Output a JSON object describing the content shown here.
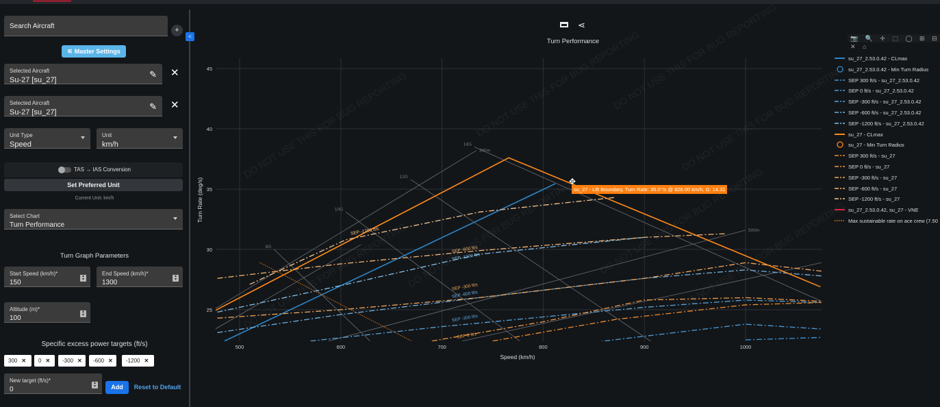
{
  "sidebar": {
    "search_placeholder": "Search Aircraft",
    "master_settings": "Master Settings",
    "selected_aircraft": [
      {
        "label": "Selected Aircraft",
        "value": "Su-27 [su_27]"
      },
      {
        "label": "Selected Aircraft",
        "value": "Su-27 [su_27]"
      }
    ],
    "unit_type": {
      "label": "Unit Type",
      "value": "Speed"
    },
    "unit": {
      "label": "Unit",
      "value": "km/h"
    },
    "tas_toggle": "TAS → IAS Conversion",
    "set_preferred": "Set Preferred Unit",
    "current_unit": "Current Unit: km/h",
    "select_chart": {
      "label": "Select Chart",
      "value": "Turn Performance"
    },
    "turn_params_title": "Turn Graph Parameters",
    "start_speed": {
      "label": "Start Speed (km/h)*",
      "value": "150"
    },
    "end_speed": {
      "label": "End Speed (km/h)*",
      "value": "1300"
    },
    "altitude": {
      "label": "Altitude (m)*",
      "value": "100"
    },
    "sep_title": "Specific excess power targets (ft/s)",
    "sep_chips": [
      "300",
      "0",
      "-300",
      "-600",
      "-1200"
    ],
    "chip_remove": "✕",
    "new_target": {
      "label": "New target (ft/s)*",
      "value": "0"
    },
    "add": "Add",
    "reset": "Reset to Default"
  },
  "chart_toolbar": {
    "icons": [
      "fullscreen-icon",
      "share-icon"
    ]
  },
  "modebar_icons": "📷 🔍 ✛ ⬚ ◯ ⊞ ⊟ ✕ ⌂",
  "watermark": "DO NOT USE THIS FOR BUG REPORTING",
  "tooltip": "su_27 - Lift Boundary, Turn Rate: 35.0°/s @ 826.00 km/h, G: 14.31",
  "colors": {
    "blue": "#2e86c8",
    "orange": "#ff8a1a",
    "vne": "#d62745",
    "accent": "#1a73e8"
  },
  "chart_data": {
    "type": "line",
    "title": "Turn Performance",
    "xlabel": "Speed (km/h)",
    "ylabel": "Turn Rate (deg/s)",
    "xlim": [
      476,
      1075
    ],
    "ylim": [
      22.4,
      45.8
    ],
    "xticks": [
      500,
      600,
      700,
      800,
      900,
      1000
    ],
    "yticks": [
      25,
      30,
      35,
      40,
      45
    ],
    "grid": true,
    "legend_position": "right",
    "series": [
      {
        "name": "su_27_2.53.0.42 - CLmax",
        "style": "solid",
        "color": "#2e86c8",
        "points": [
          [
            485,
            22.4
          ],
          [
            812,
            35.45
          ]
        ]
      },
      {
        "name": "su_27_2.53.0.42 - Min Turn Radius",
        "style": "circle",
        "color": "#2e86c8",
        "points": []
      },
      {
        "name": "SEP 300 ft/s - su_27_2.53.0.42",
        "style": "dashdot",
        "color": "#3f95d6",
        "points": [
          [
            1000,
            22.5
          ],
          [
            1075,
            22.7
          ]
        ]
      },
      {
        "name": "SEP 0 ft/s - su_27_2.53.0.42",
        "style": "dashdot",
        "color": "#4a9bd8",
        "points": [
          [
            850,
            22.3
          ],
          [
            1000,
            23.8
          ],
          [
            1075,
            23.4
          ]
        ]
      },
      {
        "name": "SEP -300 ft/s - su_27_2.53.0.42",
        "style": "dashdot",
        "color": "#5aa5dc",
        "points": [
          [
            570,
            22.4
          ],
          [
            700,
            23.6
          ],
          [
            900,
            25.2
          ],
          [
            1000,
            25.8
          ],
          [
            1075,
            25.6
          ]
        ]
      },
      {
        "name": "SEP -600 ft/s - su_27_2.53.0.42",
        "style": "dashdot",
        "color": "#6fb0e0",
        "points": [
          [
            478,
            23.1
          ],
          [
            600,
            24.6
          ],
          [
            737,
            26.0
          ],
          [
            900,
            27.6
          ],
          [
            1000,
            28.3
          ],
          [
            1075,
            27.8
          ]
        ]
      },
      {
        "name": "SEP -1200 ft/s - su_27_2.53.0.42",
        "style": "dashdot",
        "color": "#86bfe6",
        "points": [
          [
            478,
            24.8
          ],
          [
            600,
            27.0
          ],
          [
            737,
            29.6
          ],
          [
            900,
            31.0
          ]
        ]
      },
      {
        "name": "su_27 - CLmax",
        "style": "solid",
        "color": "#ff8a1a",
        "points": [
          [
            475,
            24.9
          ],
          [
            766,
            37.6
          ],
          [
            1074,
            26.9
          ]
        ]
      },
      {
        "name": "su_27 - Min Turn Radius",
        "style": "circle",
        "color": "#ff8a1a",
        "points": []
      },
      {
        "name": "SEP 300 ft/s - su_27",
        "style": "dashdot",
        "color": "#f08c2c",
        "points": [
          [
            750,
            22.4
          ],
          [
            872,
            24.2
          ],
          [
            1000,
            25.4
          ],
          [
            1075,
            25.6
          ]
        ]
      },
      {
        "name": "SEP 0 ft/s - su_27",
        "style": "dashdot",
        "color": "#f09a45",
        "points": [
          [
            690,
            22.4
          ],
          [
            800,
            24.0
          ],
          [
            900,
            25.8
          ],
          [
            1000,
            26.0
          ],
          [
            1075,
            25.7
          ]
        ]
      },
      {
        "name": "SEP -300 ft/s - su_27",
        "style": "dashdot",
        "color": "#f2a75c",
        "points": [
          [
            478,
            24.3
          ],
          [
            600,
            25.0
          ],
          [
            737,
            26.0
          ],
          [
            900,
            27.6
          ],
          [
            1000,
            28.9
          ],
          [
            1075,
            28.2
          ]
        ]
      },
      {
        "name": "SEP -600 ft/s - su_27",
        "style": "dashdot",
        "color": "#f4b574",
        "points": [
          [
            478,
            27.6
          ],
          [
            600,
            28.8
          ],
          [
            737,
            29.9
          ],
          [
            900,
            31.0
          ],
          [
            980,
            31.3
          ]
        ]
      },
      {
        "name": "SEP -1200 ft/s - su_27",
        "style": "dashdot",
        "color": "#f6c690",
        "points": [
          [
            510,
            27.1
          ],
          [
            605,
            30.8
          ],
          [
            737,
            33.1
          ],
          [
            870,
            34.3
          ]
        ]
      },
      {
        "name": "su_27_2.53.0.42, su_27 - VNE",
        "style": "solid",
        "color": "#d62745",
        "points": []
      },
      {
        "name": "Max sustainable rate on ace crew (7.50",
        "style": "dotted",
        "color": "#e07a1a",
        "points": [
          [
            520,
            28.9
          ],
          [
            670,
            22.4
          ]
        ]
      }
    ],
    "curve_labels": [
      {
        "text": "SEP -1200 ft/s",
        "x": 610,
        "y": 31.2,
        "color": "#f6c690"
      },
      {
        "text": "SEP -600 ft/s",
        "x": 710,
        "y": 29.7,
        "color": "#f4b574"
      },
      {
        "text": "SEP -1200 ft/s",
        "x": 710,
        "y": 29.3,
        "color": "#86bfe6"
      },
      {
        "text": "SEP -300 ft/s",
        "x": 710,
        "y": 26.6,
        "color": "#f2a75c"
      },
      {
        "text": "SEP -600 ft/s",
        "x": 710,
        "y": 26.3,
        "color": "#6fb0e0"
      },
      {
        "text": "SEP -300 ft/s",
        "x": 710,
        "y": 24.0,
        "color": "#5aa5dc"
      },
      {
        "text": "SEP 0 ft/s",
        "x": 715,
        "y": 22.6,
        "color": "#f09a45"
      }
    ],
    "reference_lines": [
      {
        "label": "8G",
        "points": [
          [
            534,
            30.0
          ],
          [
            629,
            22.4
          ]
        ]
      },
      {
        "label": "10G",
        "points": [
          [
            605,
            33.1
          ],
          [
            777,
            22.4
          ]
        ]
      },
      {
        "label": "12G",
        "points": [
          [
            669,
            35.8
          ],
          [
            906,
            22.4
          ]
        ]
      },
      {
        "label": "14G",
        "points": [
          [
            732,
            38.5
          ],
          [
            1075,
            25.7
          ]
        ]
      },
      {
        "label": "300m",
        "points": [
          [
            476,
            25.1
          ],
          [
            734,
            38.2
          ]
        ]
      },
      {
        "label": "500m",
        "points": [
          [
            588,
            22.4
          ],
          [
            1000,
            31.6
          ]
        ]
      },
      {
        "label": "",
        "points": [
          [
            476,
            23.4
          ],
          [
            620,
            30.4
          ]
        ]
      },
      {
        "label": "",
        "points": [
          [
            720,
            22.4
          ],
          [
            1075,
            28.9
          ]
        ]
      }
    ]
  }
}
